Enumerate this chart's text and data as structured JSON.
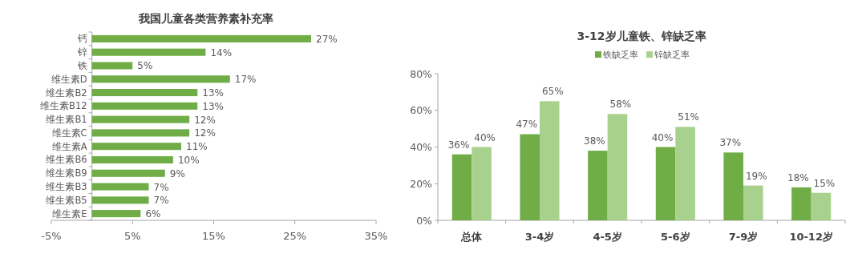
{
  "chart_data": [
    {
      "type": "bar",
      "orientation": "horizontal",
      "title": "我国儿童各类营养素补充率",
      "categories": [
        "钙",
        "锌",
        "铁",
        "维生素D",
        "维生素B2",
        "维生素B12",
        "维生素B1",
        "维生素C",
        "维生素A",
        "维生素B6",
        "维生素B9",
        "维生素B3",
        "维生素B5",
        "维生素E"
      ],
      "values": [
        27,
        14,
        5,
        17,
        13,
        13,
        12,
        12,
        11,
        10,
        9,
        7,
        7,
        6
      ],
      "value_labels": [
        "27%",
        "14%",
        "5%",
        "17%",
        "13%",
        "13%",
        "12%",
        "12%",
        "11%",
        "10%",
        "9%",
        "7%",
        "7%",
        "6%"
      ],
      "color": "#70ad47",
      "xlim": [
        -5,
        35
      ],
      "xticks": [
        {
          "value": -5,
          "label": "-5%"
        },
        {
          "value": 5,
          "label": "5%"
        },
        {
          "value": 15,
          "label": "15%"
        },
        {
          "value": 25,
          "label": "25%"
        },
        {
          "value": 35,
          "label": "35%"
        }
      ],
      "grid": false
    },
    {
      "type": "bar",
      "title": "3-12岁儿童铁、锌缺乏率",
      "categories": [
        "总体",
        "3-4岁",
        "4-5岁",
        "5-6岁",
        "7-9岁",
        "10-12岁"
      ],
      "series": [
        {
          "name": "铁缺乏率",
          "color": "#70ad47",
          "values": [
            36,
            47,
            38,
            40,
            37,
            18
          ],
          "value_labels": [
            "36%",
            "47%",
            "38%",
            "40%",
            "37%",
            "18%"
          ]
        },
        {
          "name": "锌缺乏率",
          "color": "#a9d18e",
          "values": [
            40,
            65,
            58,
            51,
            19,
            15
          ],
          "value_labels": [
            "40%",
            "65%",
            "58%",
            "51%",
            "19%",
            "15%"
          ]
        }
      ],
      "ylim": [
        0,
        80
      ],
      "yticks": [
        {
          "value": 0,
          "label": "0%"
        },
        {
          "value": 20,
          "label": "20%"
        },
        {
          "value": 40,
          "label": "40%"
        },
        {
          "value": 60,
          "label": "60%"
        },
        {
          "value": 80,
          "label": "80%"
        }
      ],
      "grid": false,
      "legend": "top"
    }
  ]
}
